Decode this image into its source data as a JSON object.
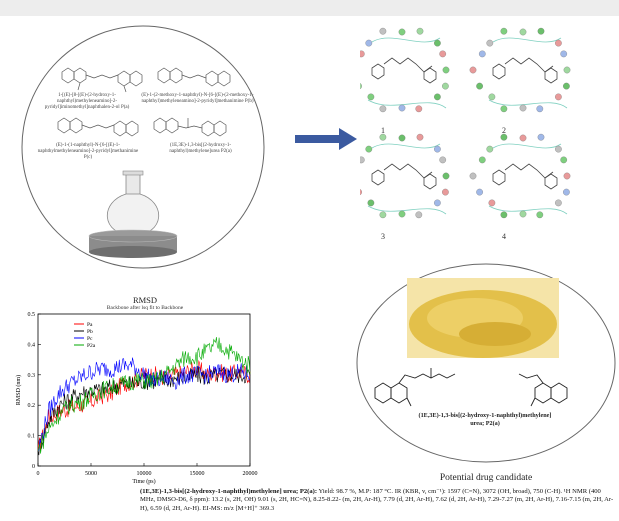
{
  "flask_panel": {
    "captions": [
      "1-[(E)-[8-[(E)-(2-hydroxy-1-naphthyl)methyleneamino]-2-pyridyl]iminomethyl]naphthalen-2-ol",
      "(E)-1-(2-methoxy-1-naphthyl)-N-[6-[(E)-(2-methoxy-1-naphthyl)methyleneamino]-2-pyridyl]methanimine",
      "(E)-1-(1-naphthyl)-N-[6-[(E)-1-naphthylmethyleneamino]-2-pyridyl]methanimine",
      "(1E,3E)-1,3-bis[(2-hydroxy-1-naphthyl)methylene]urea"
    ],
    "caption_codes": [
      "P(a)",
      "P(b)",
      "P(c)",
      "P2(a)"
    ]
  },
  "docking_panel": {
    "labels": [
      "1",
      "2",
      "3",
      "4"
    ]
  },
  "rmsd_chart_title": "RMSD",
  "chart_data": {
    "type": "line",
    "title": "RMSD",
    "subtitle": "Backbone after lsq fit to Backbone",
    "xlabel": "Time (ps)",
    "ylabel": "RMSD (nm)",
    "xlim": [
      0,
      20000
    ],
    "ylim": [
      0,
      0.5
    ],
    "x_ticks": [
      "0",
      "5000",
      "10000",
      "15000",
      "20000"
    ],
    "y_ticks": [
      "0",
      "0.1",
      "0.2",
      "0.3",
      "0.4",
      "0.5"
    ],
    "legend_position": "top-left",
    "x": [
      0,
      1000,
      2000,
      3000,
      4000,
      5000,
      6000,
      7000,
      8000,
      9000,
      10000,
      11000,
      12000,
      13000,
      14000,
      15000,
      16000,
      17000,
      18000,
      19000,
      20000
    ],
    "series": [
      {
        "name": "Pa",
        "color": "#ff0000",
        "values": [
          0.05,
          0.16,
          0.18,
          0.19,
          0.2,
          0.21,
          0.23,
          0.24,
          0.27,
          0.28,
          0.3,
          0.3,
          0.29,
          0.3,
          0.31,
          0.32,
          0.3,
          0.31,
          0.3,
          0.31,
          0.3
        ]
      },
      {
        "name": "Pb",
        "color": "#000000",
        "values": [
          0.05,
          0.15,
          0.2,
          0.22,
          0.24,
          0.25,
          0.25,
          0.26,
          0.27,
          0.27,
          0.28,
          0.28,
          0.28,
          0.29,
          0.29,
          0.3,
          0.29,
          0.3,
          0.3,
          0.3,
          0.3
        ]
      },
      {
        "name": "Pc",
        "color": "#0000ff",
        "values": [
          0.05,
          0.18,
          0.24,
          0.27,
          0.29,
          0.31,
          0.32,
          0.32,
          0.33,
          0.33,
          0.3,
          0.28,
          0.29,
          0.28,
          0.3,
          0.3,
          0.3,
          0.31,
          0.3,
          0.31,
          0.3
        ]
      },
      {
        "name": "P2a",
        "color": "#00aa00",
        "values": [
          0.05,
          0.12,
          0.17,
          0.2,
          0.21,
          0.23,
          0.25,
          0.26,
          0.27,
          0.28,
          0.28,
          0.28,
          0.3,
          0.33,
          0.36,
          0.36,
          0.38,
          0.4,
          0.38,
          0.35,
          0.33
        ]
      }
    ]
  },
  "candidate": {
    "compound_name_line1": "(1E,3E)-1,3-bis[(2-hydroxy-1-naphthyl)methylene]",
    "compound_name_line2": "urea; P2(a)",
    "caption": "Potential drug candidate"
  },
  "bottom": {
    "name_bold": "(1E,3E)-1,3-bis[(2-hydroxy-1-naphthyl)methylene] urea; P2(a):",
    "text": " Yield: 98.7 %, M.P: 187 °C. IR (KBR, v, cm⁻¹): 1597 (C=N), 3072 (OH, broad), 750 (C-H). ¹H NMR (400 MHz, DMSO-D6, δ ppm): 13.2 (s, 2H, OH) 9.01 (s, 2H, HC=N), 8.25-8.22- (m, 2H, Ar-H), 7.79 (d, 2H, Ar-H), 7.62 (d, 2H, Ar-H), 7.29-7.27 (m, 2H, Ar-H), 7.16-7.15 (m, 2H, Ar-H), 6.59 (d, 2H, Ar-H). EI-MS: m/z [M+H]⁺ 369.3"
  },
  "colors": {
    "flask_body": "#c9c9c9",
    "powder": "#e3c04a",
    "arrow": "#3b5aa0"
  }
}
